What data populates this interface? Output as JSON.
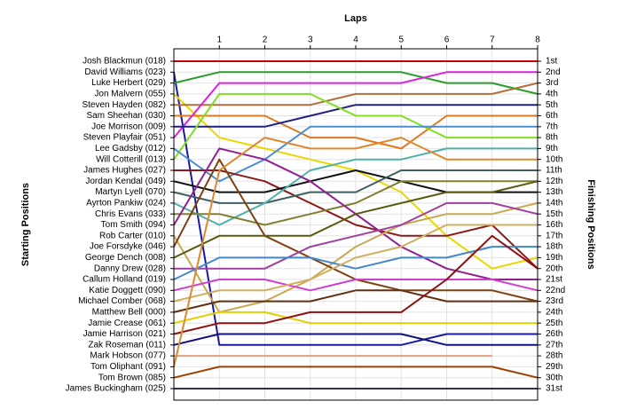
{
  "chart_data": {
    "type": "line",
    "title": "Laps",
    "y_label": "Starting Positions",
    "y2_label": "Finishing Positions",
    "x": [
      0,
      1,
      2,
      3,
      4,
      5,
      6,
      7,
      8
    ],
    "xlim": [
      0,
      8
    ],
    "xticks": [
      1,
      2,
      3,
      4,
      5,
      6,
      7,
      8
    ],
    "ylim": [
      1,
      31
    ],
    "y_inverted": true,
    "grid": true,
    "yticks": [
      {
        "value": 1,
        "label": "1st"
      },
      {
        "value": 2,
        "label": "2nd"
      },
      {
        "value": 3,
        "label": "3rd"
      },
      {
        "value": 4,
        "label": "4th"
      },
      {
        "value": 5,
        "label": "5th"
      },
      {
        "value": 6,
        "label": "6th"
      },
      {
        "value": 7,
        "label": "7th"
      },
      {
        "value": 8,
        "label": "8th"
      },
      {
        "value": 9,
        "label": "9th"
      },
      {
        "value": 10,
        "label": "10th"
      },
      {
        "value": 11,
        "label": "11th"
      },
      {
        "value": 12,
        "label": "12th"
      },
      {
        "value": 13,
        "label": "13th"
      },
      {
        "value": 14,
        "label": "14th"
      },
      {
        "value": 15,
        "label": "15th"
      },
      {
        "value": 16,
        "label": "16th"
      },
      {
        "value": 17,
        "label": "17th"
      },
      {
        "value": 18,
        "label": "18th"
      },
      {
        "value": 19,
        "label": "19th"
      },
      {
        "value": 20,
        "label": "20th"
      },
      {
        "value": 21,
        "label": "21st"
      },
      {
        "value": 22,
        "label": "22nd"
      },
      {
        "value": 23,
        "label": "23rd"
      },
      {
        "value": 24,
        "label": "24th"
      },
      {
        "value": 25,
        "label": "25th"
      },
      {
        "value": 26,
        "label": "26th"
      },
      {
        "value": 27,
        "label": "27th"
      },
      {
        "value": 28,
        "label": "28th"
      },
      {
        "value": 29,
        "label": "29th"
      },
      {
        "value": 30,
        "label": "30th"
      },
      {
        "value": 31,
        "label": "31st"
      }
    ],
    "series": [
      {
        "name": "Josh Blackmun (018)",
        "color": "#cc0000",
        "values": [
          1,
          1,
          1,
          1,
          1,
          1,
          1,
          1,
          1
        ]
      },
      {
        "name": "David Williams (023)",
        "color": "#1a1aa8",
        "values": [
          2,
          27,
          27,
          27,
          27,
          27,
          26,
          26,
          26
        ]
      },
      {
        "name": "Luke Herbert (029)",
        "color": "#2a9d2a",
        "values": [
          3,
          2,
          2,
          2,
          2,
          2,
          3,
          3,
          4
        ]
      },
      {
        "name": "Jon Malvern (055)",
        "color": "#e8d800",
        "values": [
          4,
          8,
          9,
          10,
          11,
          13,
          17,
          20,
          19
        ]
      },
      {
        "name": "Steven Hayden (082)",
        "color": "#b07040",
        "values": [
          5,
          5,
          5,
          5,
          4,
          4,
          4,
          4,
          3
        ]
      },
      {
        "name": "Sam Sheehan (030)",
        "color": "#e07820",
        "values": [
          6,
          6,
          6,
          8,
          8,
          9,
          6,
          6,
          6
        ]
      },
      {
        "name": "Steven Playfair (051)",
        "color": "#e020e0",
        "values": [
          8,
          3,
          3,
          3,
          3,
          3,
          2,
          2,
          2
        ]
      },
      {
        "name": "Joe Morrison (009)",
        "color": "#202080",
        "values": [
          7,
          7,
          7,
          6,
          5,
          5,
          5,
          5,
          5
        ]
      },
      {
        "name": "Will Cotterill (013)",
        "color": "#80e020",
        "values": [
          10,
          4,
          4,
          4,
          6,
          6,
          8,
          8,
          8
        ]
      },
      {
        "name": "Lee Gadsby (012)",
        "color": "#4a90d0",
        "values": [
          9,
          12,
          10,
          7,
          7,
          7,
          7,
          7,
          7
        ]
      },
      {
        "name": "James Hughes (027)",
        "color": "#8b1a1a",
        "values": [
          11,
          11,
          12,
          14,
          16,
          17,
          17,
          16,
          20
        ]
      },
      {
        "name": "Jordan Kendal (049)",
        "color": "#111111",
        "values": [
          12,
          13,
          13,
          12,
          11,
          12,
          13,
          13,
          13
        ]
      },
      {
        "name": "Martyn Lyell (070)",
        "color": "#406060",
        "values": [
          13,
          14,
          14,
          13,
          13,
          11,
          11,
          11,
          11
        ]
      },
      {
        "name": "Ayrton Pankiw (024)",
        "color": "#50b0a8",
        "values": [
          14,
          16,
          14,
          11,
          10,
          10,
          9,
          9,
          9
        ]
      },
      {
        "name": "Chris Evans (033)",
        "color": "#808030",
        "values": [
          15,
          15,
          16,
          15,
          14,
          12,
          12,
          12,
          12
        ]
      },
      {
        "name": "Tom Smith (094)",
        "color": "#902090",
        "values": [
          16,
          9,
          10,
          12,
          15,
          18,
          20,
          21,
          21
        ]
      },
      {
        "name": "Rob Carter (010)",
        "color": "#c8a850",
        "values": [
          17,
          24,
          23,
          21,
          18,
          16,
          15,
          15,
          14
        ]
      },
      {
        "name": "Joe Forsdyke (046)",
        "color": "#804010",
        "values": [
          18,
          10,
          17,
          19,
          21,
          22,
          22,
          22,
          23
        ]
      },
      {
        "name": "George Dench (008)",
        "color": "#5a5a10",
        "values": [
          19,
          17,
          17,
          17,
          15,
          14,
          13,
          13,
          12
        ]
      },
      {
        "name": "Danny Drew (028)",
        "color": "#a040a0",
        "values": [
          20,
          20,
          20,
          18,
          17,
          16,
          14,
          14,
          15
        ]
      },
      {
        "name": "Callum Holland (019)",
        "color": "#4488cc",
        "values": [
          21,
          19,
          19,
          19,
          20,
          19,
          19,
          18,
          18
        ]
      },
      {
        "name": "Katie Doggett (090)",
        "color": "#d040d0",
        "values": [
          22,
          21,
          21,
          22,
          21,
          21,
          21,
          21,
          22
        ]
      },
      {
        "name": "Michael Comber (068)",
        "color": "#d0b060",
        "values": [
          23,
          22,
          22,
          21,
          19,
          18,
          16,
          16,
          16
        ]
      },
      {
        "name": "Matthew Bell (000)",
        "color": "#603010",
        "values": [
          24,
          23,
          23,
          23,
          22,
          22,
          23,
          23,
          23
        ]
      },
      {
        "name": "Jamie Crease (061)",
        "color": "#e0d000",
        "values": [
          25,
          24,
          24,
          25,
          25,
          25,
          25,
          25,
          25
        ]
      },
      {
        "name": "Jamie Harrison (021)",
        "color": "#901010",
        "values": [
          26,
          25,
          25,
          24,
          24,
          24,
          21,
          17,
          20
        ]
      },
      {
        "name": "Zak Roseman (011)",
        "color": "#101080",
        "values": [
          27,
          26,
          26,
          26,
          26,
          26,
          27,
          27,
          27
        ]
      },
      {
        "name": "Mark Hobson (077)",
        "color": "#e0a080",
        "values": [
          28,
          28,
          28,
          28,
          28,
          28,
          28,
          28,
          null
        ]
      },
      {
        "name": "Tom Oliphant (091)",
        "color": "#e08830",
        "values": [
          29,
          11,
          8,
          9,
          9,
          8,
          10,
          10,
          10
        ]
      },
      {
        "name": "Tom Brown (085)",
        "color": "#a04000",
        "values": [
          30,
          29,
          29,
          29,
          29,
          29,
          29,
          29,
          30
        ]
      },
      {
        "name": "James Buckingham (025)",
        "color": "#303050",
        "values": [
          31,
          31,
          31,
          31,
          31,
          31,
          31,
          31,
          31
        ]
      }
    ]
  }
}
